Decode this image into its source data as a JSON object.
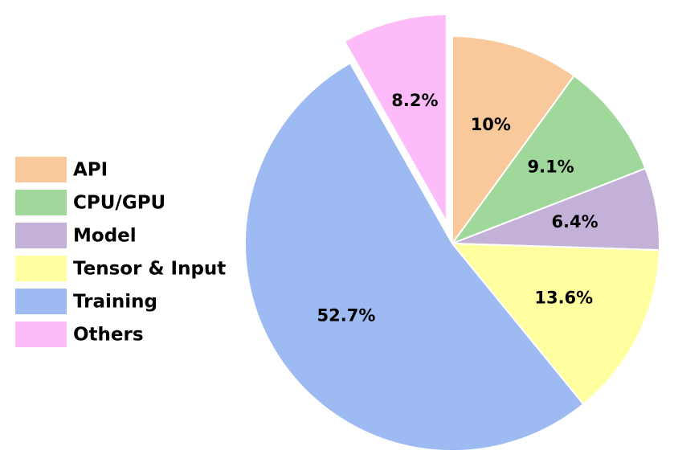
{
  "chart_data": {
    "type": "pie",
    "categories": [
      "API",
      "CPU/GPU",
      "Model",
      "Tensor & Input",
      "Training",
      "Others"
    ],
    "values": [
      10,
      9.1,
      6.4,
      13.6,
      52.7,
      8.2
    ],
    "value_labels": [
      "10%",
      "9.1%",
      "6.4%",
      "13.6%",
      "52.7%",
      "8.2%"
    ],
    "colors": [
      "#f9c89b",
      "#a0d89c",
      "#c3b1d8",
      "#ffff9f",
      "#9dbaf2",
      "#fdbcf9"
    ],
    "legend": "left"
  }
}
